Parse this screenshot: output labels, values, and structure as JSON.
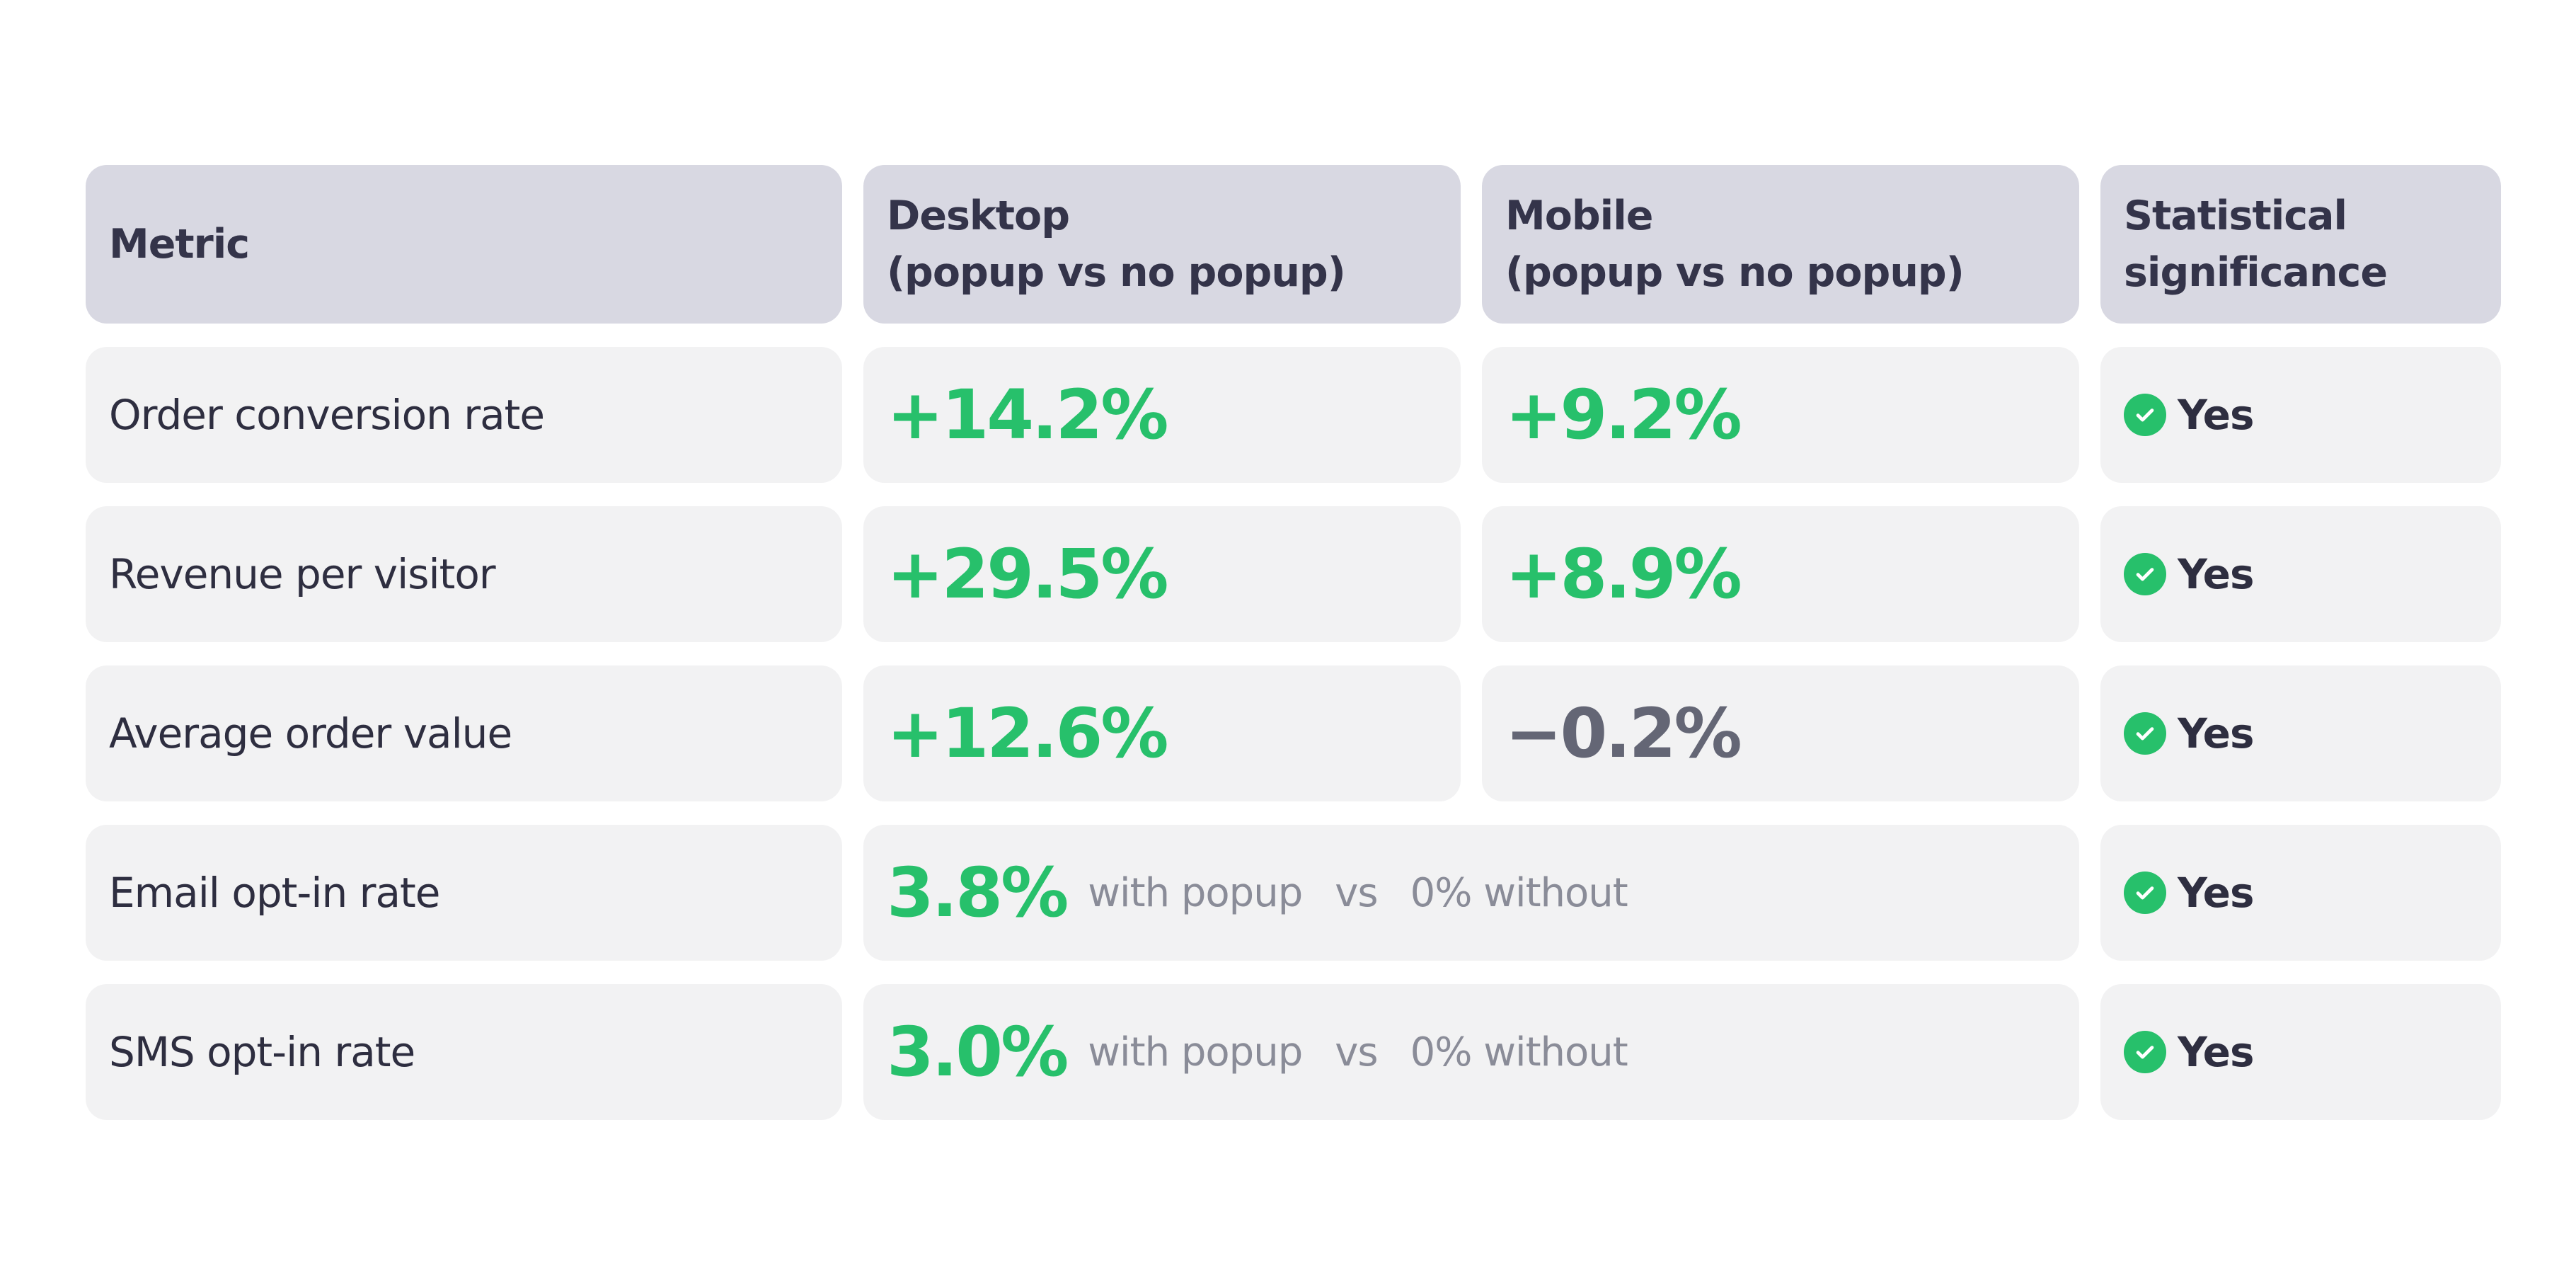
{
  "header": {
    "metric": "Metric",
    "desktop_line1": "Desktop",
    "desktop_line2": "(popup vs no popup)",
    "mobile_line1": "Mobile",
    "mobile_line2": "(popup vs no popup)",
    "significance_line1": "Statistical",
    "significance_line2": "significance"
  },
  "rows": [
    {
      "metric": "Order conversion rate",
      "desktop": "+14.2%",
      "mobile": "+9.2%",
      "significance": "Yes"
    },
    {
      "metric": "Revenue per visitor",
      "desktop": "+29.5%",
      "mobile": "+8.9%",
      "significance": "Yes"
    },
    {
      "metric": "Average order value",
      "desktop": "+12.6%",
      "mobile": "−0.2%",
      "significance": "Yes"
    },
    {
      "metric": "Email opt-in rate",
      "value": "3.8%",
      "with_label": "with popup",
      "vs_label": "vs",
      "without_label": "0% without",
      "significance": "Yes"
    },
    {
      "metric": "SMS opt-in rate",
      "value": "3.0%",
      "with_label": "with popup",
      "vs_label": "vs",
      "without_label": "0% without",
      "significance": "Yes"
    }
  ],
  "colors": {
    "positive": "#27c06b",
    "neutral": "#646675",
    "header_bg": "#d8d8e2",
    "cell_bg": "#f2f2f3"
  },
  "icons": {
    "significance": "check-circle-icon"
  }
}
